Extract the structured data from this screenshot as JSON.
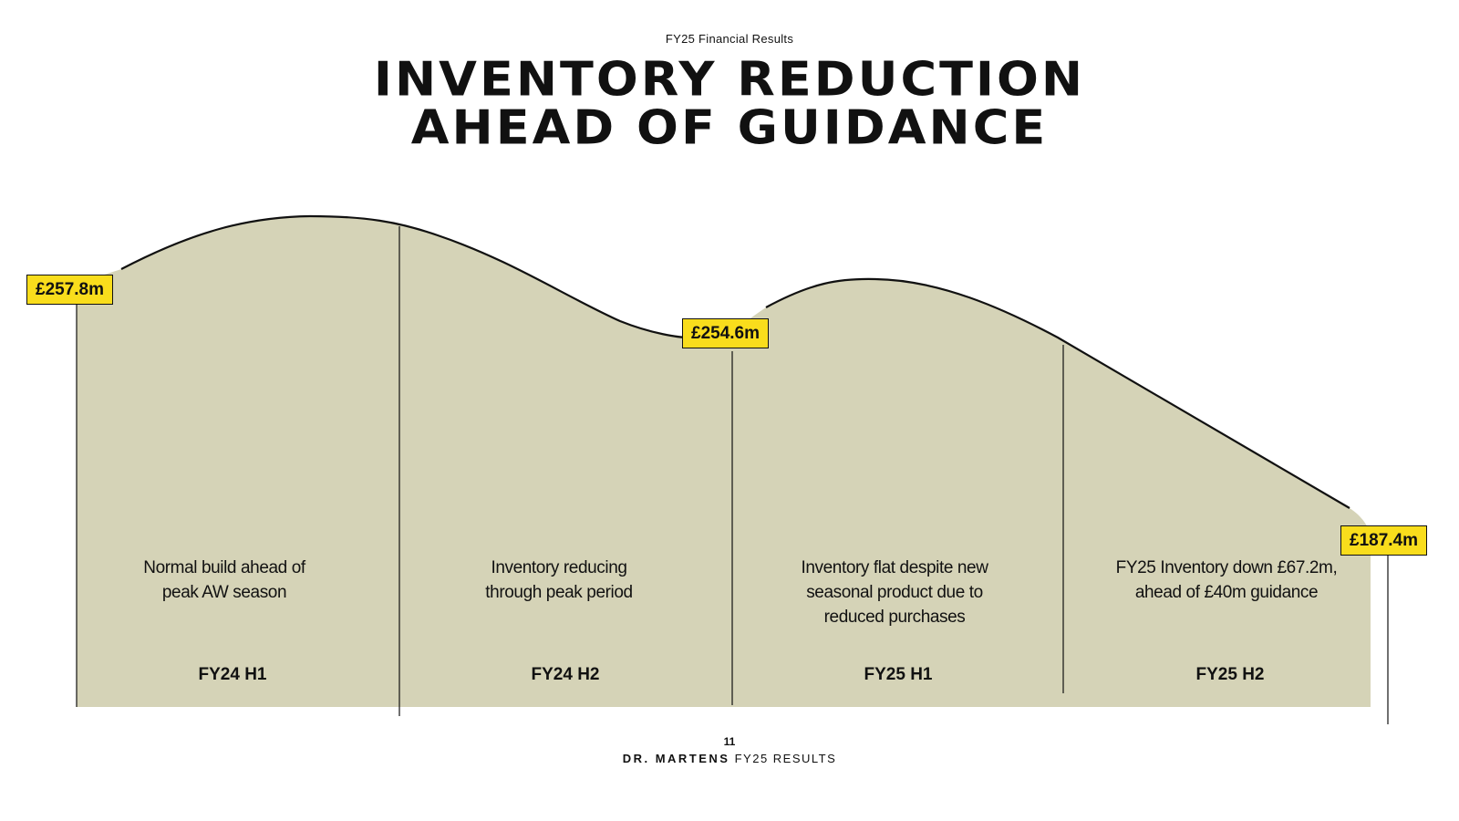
{
  "header": {
    "kicker": "FY25 Financial Results",
    "title_line1": "INVENTORY REDUCTION",
    "title_line2": "AHEAD OF GUIDANCE"
  },
  "colors": {
    "area_fill": "#d5d3b7",
    "line": "#111111",
    "label_bg": "#f9dd1c"
  },
  "chart_data": {
    "type": "area",
    "categories": [
      "FY24 H1",
      "FY24 H2",
      "FY25 H1",
      "FY25 H2"
    ],
    "series": [
      {
        "values_labels": [
          "£257.8m",
          "£254.6m",
          "£187.4m"
        ]
      }
    ],
    "points": [
      {
        "period_boundary": "start FY24 H1",
        "value": 257.8,
        "label": "£257.8m"
      },
      {
        "period_boundary": "end FY24 H2",
        "value": 254.6,
        "label": "£254.6m"
      },
      {
        "period_boundary": "end FY25 H2",
        "value": 187.4,
        "label": "£187.4m"
      }
    ],
    "annotations": [
      "Normal build ahead of peak AW season",
      "Inventory reducing through peak period",
      "Inventory flat despite new seasonal product due to reduced purchases",
      "FY25 Inventory down £67.2m, ahead of £40m guidance"
    ],
    "title": "INVENTORY REDUCTION AHEAD OF GUIDANCE",
    "xlabel": "",
    "ylabel": ""
  },
  "annotations": {
    "a1_line1": "Normal build ahead of",
    "a1_line2": "peak AW season",
    "a2_line1": "Inventory reducing",
    "a2_line2": "through peak period",
    "a3_line1": "Inventory flat despite new",
    "a3_line2": "seasonal product due to",
    "a3_line3": "reduced purchases",
    "a4_line1": "FY25 Inventory down £67.2m,",
    "a4_line2": "ahead of £40m guidance"
  },
  "periods": {
    "p1": "FY24 H1",
    "p2": "FY24 H2",
    "p3": "FY25 H1",
    "p4": "FY25 H2"
  },
  "labels": {
    "start": "£257.8m",
    "mid": "£254.6m",
    "end": "£187.4m"
  },
  "footer": {
    "page_number": "11",
    "brand": "DR. MARTENS",
    "suffix": "FY25 RESULTS"
  }
}
